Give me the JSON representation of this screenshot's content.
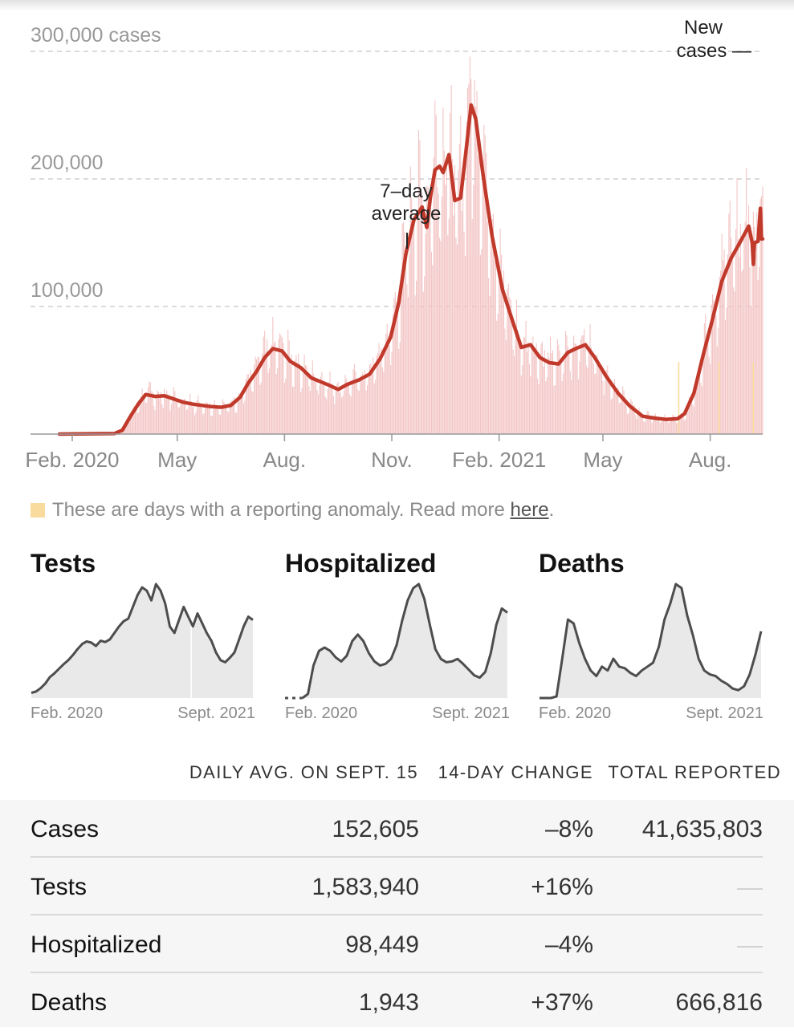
{
  "chart_data": {
    "type": "bar",
    "y_unit_label": "300,000 cases",
    "y_ticks": [
      {
        "value": 100000,
        "label": "100,000"
      },
      {
        "value": 200000,
        "label": "200,000"
      },
      {
        "value": 300000,
        "label": "300,000 cases"
      }
    ],
    "ylim": [
      0,
      300000
    ],
    "x_range": [
      "2020-01-21",
      "2021-09-15"
    ],
    "x_ticks": [
      {
        "date": "2020-02-01",
        "label": "Feb. 2020"
      },
      {
        "date": "2020-05-01",
        "label": "May"
      },
      {
        "date": "2020-08-01",
        "label": "Aug."
      },
      {
        "date": "2020-11-01",
        "label": "Nov."
      },
      {
        "date": "2021-02-01",
        "label": "Feb. 2021"
      },
      {
        "date": "2021-05-01",
        "label": "May"
      },
      {
        "date": "2021-08-01",
        "label": "Aug."
      }
    ],
    "grid": true,
    "annotations": {
      "avg_label": [
        "7–day",
        "average"
      ],
      "new_cases_label": [
        "New",
        "cases —"
      ]
    },
    "series": [
      {
        "name": "7–day average",
        "points": [
          [
            "2020-01-21",
            0
          ],
          [
            "2020-03-08",
            400
          ],
          [
            "2020-03-15",
            3000
          ],
          [
            "2020-03-22",
            14000
          ],
          [
            "2020-03-29",
            24000
          ],
          [
            "2020-04-04",
            31000
          ],
          [
            "2020-04-12",
            29500
          ],
          [
            "2020-04-20",
            30000
          ],
          [
            "2020-04-28",
            27500
          ],
          [
            "2020-05-06",
            25000
          ],
          [
            "2020-05-14",
            23500
          ],
          [
            "2020-05-22",
            22500
          ],
          [
            "2020-05-30",
            21500
          ],
          [
            "2020-06-08",
            21000
          ],
          [
            "2020-06-16",
            22500
          ],
          [
            "2020-06-24",
            29000
          ],
          [
            "2020-07-01",
            40000
          ],
          [
            "2020-07-08",
            49000
          ],
          [
            "2020-07-15",
            60000
          ],
          [
            "2020-07-22",
            67000
          ],
          [
            "2020-07-30",
            65000
          ],
          [
            "2020-08-06",
            57000
          ],
          [
            "2020-08-15",
            52000
          ],
          [
            "2020-08-24",
            44000
          ],
          [
            "2020-09-01",
            41000
          ],
          [
            "2020-09-09",
            38000
          ],
          [
            "2020-09-16",
            35000
          ],
          [
            "2020-09-24",
            39000
          ],
          [
            "2020-10-04",
            42500
          ],
          [
            "2020-10-13",
            47000
          ],
          [
            "2020-10-22",
            59000
          ],
          [
            "2020-10-31",
            76000
          ],
          [
            "2020-11-07",
            103000
          ],
          [
            "2020-11-13",
            141000
          ],
          [
            "2020-11-20",
            168000
          ],
          [
            "2020-11-27",
            178000
          ],
          [
            "2020-12-01",
            162000
          ],
          [
            "2020-12-04",
            185000
          ],
          [
            "2020-12-08",
            207000
          ],
          [
            "2020-12-12",
            210000
          ],
          [
            "2020-12-15",
            205000
          ],
          [
            "2020-12-20",
            219000
          ],
          [
            "2020-12-25",
            183000
          ],
          [
            "2020-12-30",
            185000
          ],
          [
            "2021-01-04",
            225000
          ],
          [
            "2021-01-08",
            258000
          ],
          [
            "2021-01-12",
            247000
          ],
          [
            "2021-01-18",
            205000
          ],
          [
            "2021-01-26",
            155000
          ],
          [
            "2021-02-04",
            113000
          ],
          [
            "2021-02-12",
            90000
          ],
          [
            "2021-02-20",
            68000
          ],
          [
            "2021-02-28",
            70000
          ],
          [
            "2021-03-08",
            60000
          ],
          [
            "2021-03-16",
            56000
          ],
          [
            "2021-03-24",
            55000
          ],
          [
            "2021-04-01",
            64000
          ],
          [
            "2021-04-09",
            67500
          ],
          [
            "2021-04-16",
            70000
          ],
          [
            "2021-04-24",
            60000
          ],
          [
            "2021-05-04",
            45000
          ],
          [
            "2021-05-14",
            32000
          ],
          [
            "2021-05-24",
            22000
          ],
          [
            "2021-06-04",
            14000
          ],
          [
            "2021-06-14",
            12500
          ],
          [
            "2021-06-24",
            11500
          ],
          [
            "2021-07-04",
            12000
          ],
          [
            "2021-07-10",
            16000
          ],
          [
            "2021-07-18",
            32000
          ],
          [
            "2021-07-26",
            62000
          ],
          [
            "2021-08-03",
            90000
          ],
          [
            "2021-08-11",
            120000
          ],
          [
            "2021-08-19",
            138000
          ],
          [
            "2021-08-27",
            151000
          ],
          [
            "2021-09-03",
            163000
          ],
          [
            "2021-09-06",
            150000
          ],
          [
            "2021-09-07",
            133000
          ],
          [
            "2021-09-08",
            150000
          ],
          [
            "2021-09-11",
            151000
          ],
          [
            "2021-09-13",
            177000
          ],
          [
            "2021-09-14",
            153000
          ],
          [
            "2021-09-15",
            153000
          ]
        ]
      }
    ],
    "anomaly_days": [
      "2021-07-05",
      "2021-08-09",
      "2021-09-07"
    ]
  },
  "anomaly_note": {
    "text": "These are days with a reporting anomaly. Read more ",
    "link": "here",
    "end": "."
  },
  "small_charts": [
    {
      "title": "Tests",
      "x_start": "Feb. 2020",
      "x_end": "Sept. 2021",
      "values": [
        8,
        10,
        15,
        22,
        32,
        38,
        45,
        52,
        58,
        66,
        75,
        83,
        87,
        85,
        80,
        88,
        86,
        90,
        100,
        110,
        118,
        122,
        140,
        158,
        170,
        165,
        150,
        175,
        165,
        145,
        110,
        100,
        120,
        140,
        125,
        110,
        130,
        115,
        100,
        88,
        70,
        58,
        55,
        62,
        70,
        90,
        110,
        125,
        120
      ],
      "divider_fraction": 0.72
    },
    {
      "title": "Hospitalized",
      "x_start": "Feb. 2020",
      "x_end": "Sept. 2021",
      "values": [
        null,
        null,
        null,
        0,
        5,
        40,
        58,
        62,
        58,
        50,
        45,
        52,
        70,
        78,
        70,
        55,
        45,
        40,
        42,
        48,
        65,
        95,
        120,
        135,
        140,
        122,
        90,
        60,
        48,
        44,
        45,
        48,
        42,
        35,
        28,
        25,
        32,
        55,
        90,
        110,
        105
      ],
      "dotted_start": true
    },
    {
      "title": "Deaths",
      "x_start": "Feb. 2020",
      "x_end": "Sept. 2021",
      "values": [
        0,
        0,
        0,
        2,
        50,
        100,
        95,
        70,
        50,
        35,
        28,
        40,
        35,
        50,
        40,
        38,
        32,
        28,
        35,
        40,
        45,
        65,
        100,
        120,
        145,
        140,
        105,
        80,
        50,
        35,
        30,
        28,
        22,
        18,
        12,
        10,
        15,
        30,
        55,
        85
      ]
    }
  ],
  "summary_table": {
    "columns": [
      "DAILY AVG. ON SEPT. 15",
      "14-DAY CHANGE",
      "TOTAL REPORTED"
    ],
    "rows": [
      {
        "name": "Cases",
        "avg": "152,605",
        "change": "–8%",
        "total": "41,635,803"
      },
      {
        "name": "Tests",
        "avg": "1,583,940",
        "change": "+16%",
        "total": ""
      },
      {
        "name": "Hospitalized",
        "avg": "98,449",
        "change": "–4%",
        "total": ""
      },
      {
        "name": "Deaths",
        "avg": "1,943",
        "change": "+37%",
        "total": "666,816"
      }
    ]
  },
  "colors": {
    "avg_line": "#c0392b",
    "bar_fill": "#f3c5c5",
    "anomaly": "#f9dc9d",
    "spark_line": "#4d4d4d",
    "spark_fill": "#e9e9e9"
  }
}
